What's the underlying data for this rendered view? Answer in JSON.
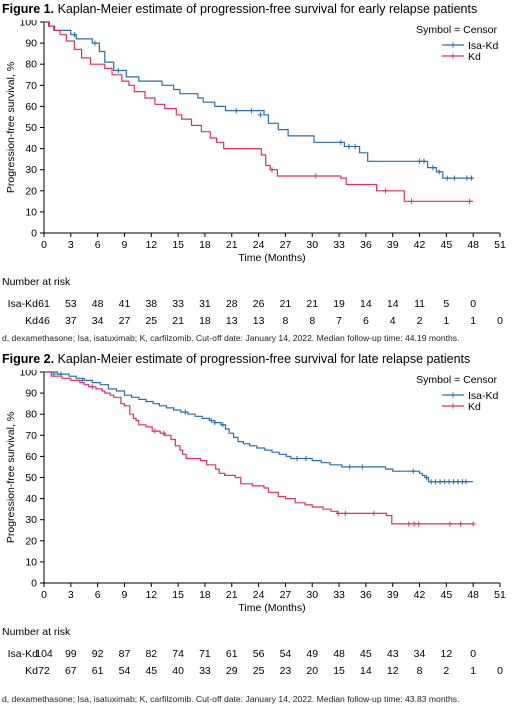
{
  "figures": [
    {
      "label": "Figure 1.",
      "title": "Kaplan-Meier estimate of progression-free survival for early relapse patients",
      "footnote": "d, dexamethasone; Isa, isatuximab; K, carfilzomib. Cut-off date: January 14, 2022. Median follow-up time: 44.19 months."
    },
    {
      "label": "Figure 2.",
      "title": "Kaplan-Meier estimate of progression-free survival for late relapse patients",
      "footnote": "d, dexamethasone; Isa, isatuximab; K, carfilzomib. Cut-off date: January 14, 2022. Median follow-up time: 43.83 months."
    }
  ],
  "chart_data": [
    {
      "type": "line",
      "step": true,
      "xlabel": "Time (Months)",
      "ylabel": "Progression-free survival, %",
      "xlim": [
        0,
        51
      ],
      "ylim": [
        0,
        100
      ],
      "xticks": [
        0,
        3,
        6,
        9,
        12,
        15,
        18,
        21,
        24,
        27,
        30,
        33,
        36,
        39,
        42,
        45,
        48,
        51
      ],
      "yticks": [
        0,
        10,
        20,
        30,
        40,
        50,
        60,
        70,
        80,
        90,
        100
      ],
      "grid": false,
      "legend": {
        "placement": "top-right",
        "title": "Symbol = Censor"
      },
      "series": [
        {
          "name": "Isa-Kd",
          "color": "#2e6da8",
          "points": [
            [
              0,
              100
            ],
            [
              0.6,
              98
            ],
            [
              1.2,
              96
            ],
            [
              3,
              94
            ],
            [
              3.6,
              92
            ],
            [
              5.4,
              90
            ],
            [
              6.2,
              86
            ],
            [
              6.8,
              81
            ],
            [
              7.8,
              77
            ],
            [
              9.2,
              74
            ],
            [
              10.6,
              72
            ],
            [
              13.2,
              70
            ],
            [
              14.5,
              68
            ],
            [
              15.2,
              66
            ],
            [
              17.2,
              64
            ],
            [
              17.8,
              62
            ],
            [
              19.1,
              60
            ],
            [
              20.3,
              58
            ],
            [
              24.6,
              56
            ],
            [
              25.1,
              52
            ],
            [
              26.2,
              49
            ],
            [
              27.3,
              46
            ],
            [
              30.2,
              43
            ],
            [
              33.6,
              41
            ],
            [
              35.3,
              38
            ],
            [
              36.2,
              34
            ],
            [
              42.9,
              31
            ],
            [
              43.9,
              29
            ],
            [
              44.6,
              26
            ],
            [
              48,
              26
            ]
          ],
          "censors": [
            [
              3.4,
              94
            ],
            [
              5.7,
              90
            ],
            [
              8.3,
              77
            ],
            [
              21.5,
              58
            ],
            [
              23.2,
              58
            ],
            [
              24.2,
              56
            ],
            [
              33.2,
              43
            ],
            [
              34.1,
              41
            ],
            [
              34.8,
              41
            ],
            [
              42.0,
              34
            ],
            [
              42.5,
              34
            ],
            [
              43.5,
              31
            ],
            [
              44.2,
              29
            ],
            [
              45.1,
              26
            ],
            [
              45.9,
              26
            ],
            [
              47.3,
              26
            ],
            [
              47.8,
              26
            ]
          ]
        },
        {
          "name": "Kd",
          "color": "#d6336c",
          "points": [
            [
              0,
              100
            ],
            [
              0.5,
              98
            ],
            [
              1.1,
              96
            ],
            [
              1.8,
              94
            ],
            [
              2.5,
              91
            ],
            [
              3.4,
              87
            ],
            [
              4.2,
              83
            ],
            [
              5.2,
              80
            ],
            [
              6.8,
              78
            ],
            [
              7.6,
              75
            ],
            [
              8.7,
              72
            ],
            [
              9.5,
              70
            ],
            [
              10.1,
              67
            ],
            [
              11.3,
              64
            ],
            [
              12.4,
              61
            ],
            [
              13.5,
              59
            ],
            [
              14.8,
              56
            ],
            [
              15.4,
              54
            ],
            [
              16.5,
              51
            ],
            [
              17.6,
              48
            ],
            [
              18.6,
              45
            ],
            [
              19.3,
              43
            ],
            [
              20.1,
              40
            ],
            [
              24.3,
              37
            ],
            [
              24.8,
              32
            ],
            [
              25.3,
              30
            ],
            [
              26.1,
              27
            ],
            [
              33.2,
              26
            ],
            [
              33.8,
              23
            ],
            [
              37.2,
              20
            ],
            [
              40.3,
              15
            ],
            [
              48,
              15
            ]
          ],
          "censors": [
            [
              25.5,
              30
            ],
            [
              30.4,
              27
            ],
            [
              38.2,
              20
            ],
            [
              41.1,
              15
            ],
            [
              47.6,
              15
            ]
          ]
        }
      ],
      "risk_table": {
        "title": "Number at risk",
        "rows": [
          {
            "label": "Isa-Kd",
            "values": [
              "61",
              "53",
              "48",
              "41",
              "38",
              "33",
              "31",
              "28",
              "26",
              "21",
              "21",
              "19",
              "14",
              "14",
              "11",
              "5",
              "0"
            ]
          },
          {
            "label": "Kd",
            "values": [
              "46",
              "37",
              "34",
              "27",
              "25",
              "21",
              "18",
              "13",
              "13",
              "8",
              "8",
              "7",
              "6",
              "4",
              "2",
              "1",
              "1",
              "0"
            ]
          }
        ]
      }
    },
    {
      "type": "line",
      "step": true,
      "xlabel": "Time (Months)",
      "ylabel": "Progression-free survival, %",
      "xlim": [
        0,
        51
      ],
      "ylim": [
        0,
        100
      ],
      "xticks": [
        0,
        3,
        6,
        9,
        12,
        15,
        18,
        21,
        24,
        27,
        30,
        33,
        36,
        39,
        42,
        45,
        48,
        51
      ],
      "yticks": [
        0,
        10,
        20,
        30,
        40,
        50,
        60,
        70,
        80,
        90,
        100
      ],
      "grid": false,
      "legend": {
        "placement": "top-right",
        "title": "Symbol = Censor"
      },
      "series": [
        {
          "name": "Isa-Kd",
          "color": "#2e6da8",
          "points": [
            [
              0,
              100
            ],
            [
              1.5,
              99
            ],
            [
              2.8,
              98
            ],
            [
              3.6,
              97
            ],
            [
              4.5,
              96
            ],
            [
              5.4,
              95
            ],
            [
              6.3,
              94
            ],
            [
              7.2,
              92
            ],
            [
              8.1,
              91
            ],
            [
              9.0,
              89
            ],
            [
              9.8,
              88
            ],
            [
              10.6,
              87
            ],
            [
              11.4,
              86
            ],
            [
              12.2,
              85
            ],
            [
              12.9,
              84
            ],
            [
              13.7,
              83
            ],
            [
              14.5,
              82
            ],
            [
              15.3,
              81
            ],
            [
              16.1,
              80
            ],
            [
              16.9,
              79
            ],
            [
              17.7,
              78
            ],
            [
              18.5,
              77
            ],
            [
              19.1,
              76
            ],
            [
              19.8,
              75
            ],
            [
              20.3,
              73
            ],
            [
              20.7,
              71
            ],
            [
              21.2,
              69
            ],
            [
              21.7,
              67
            ],
            [
              22.3,
              66
            ],
            [
              23.0,
              65
            ],
            [
              23.8,
              64
            ],
            [
              24.7,
              63
            ],
            [
              25.5,
              62
            ],
            [
              26.3,
              61
            ],
            [
              27.1,
              60
            ],
            [
              27.6,
              59
            ],
            [
              30.0,
              58
            ],
            [
              31.0,
              57
            ],
            [
              32.0,
              56
            ],
            [
              33.3,
              55
            ],
            [
              35.2,
              55
            ],
            [
              38.2,
              54
            ],
            [
              39.0,
              53
            ],
            [
              40.3,
              53
            ],
            [
              42.0,
              52
            ],
            [
              42.3,
              51
            ],
            [
              42.6,
              50
            ],
            [
              43.0,
              48
            ],
            [
              48,
              48
            ]
          ],
          "censors": [
            [
              1.1,
              99
            ],
            [
              1.9,
              99
            ],
            [
              4.3,
              96
            ],
            [
              15.8,
              81
            ],
            [
              18.7,
              77
            ],
            [
              19.1,
              76
            ],
            [
              20.0,
              75
            ],
            [
              28.3,
              59
            ],
            [
              29.3,
              59
            ],
            [
              34.2,
              55
            ],
            [
              35.6,
              55
            ],
            [
              41.3,
              53
            ],
            [
              42.8,
              50
            ],
            [
              43.3,
              48
            ],
            [
              43.8,
              48
            ],
            [
              44.3,
              48
            ],
            [
              44.8,
              48
            ],
            [
              45.3,
              48
            ],
            [
              45.8,
              48
            ],
            [
              46.3,
              48
            ],
            [
              46.8,
              48
            ],
            [
              47.2,
              48
            ]
          ]
        },
        {
          "name": "Kd",
          "color": "#d6336c",
          "points": [
            [
              0,
              100
            ],
            [
              0.8,
              98
            ],
            [
              2.0,
              97
            ],
            [
              3.0,
              96
            ],
            [
              4.0,
              95
            ],
            [
              4.5,
              94
            ],
            [
              5.0,
              93
            ],
            [
              5.8,
              92
            ],
            [
              6.5,
              91
            ],
            [
              6.8,
              90
            ],
            [
              7.4,
              89
            ],
            [
              7.8,
              88
            ],
            [
              8.6,
              85
            ],
            [
              9.0,
              84
            ],
            [
              9.6,
              80
            ],
            [
              10.0,
              78
            ],
            [
              10.3,
              77
            ],
            [
              10.6,
              75
            ],
            [
              11.4,
              74
            ],
            [
              12.1,
              72
            ],
            [
              13.0,
              71
            ],
            [
              13.5,
              70
            ],
            [
              14.2,
              68
            ],
            [
              14.7,
              65
            ],
            [
              15.2,
              63
            ],
            [
              15.5,
              61
            ],
            [
              15.9,
              59
            ],
            [
              17.5,
              58
            ],
            [
              18.2,
              56
            ],
            [
              19.2,
              54
            ],
            [
              19.6,
              52
            ],
            [
              20.2,
              51
            ],
            [
              21.4,
              50
            ],
            [
              22.0,
              47
            ],
            [
              23.3,
              46
            ],
            [
              24.6,
              45
            ],
            [
              25.1,
              43
            ],
            [
              26.2,
              41
            ],
            [
              27.0,
              40
            ],
            [
              28.1,
              38
            ],
            [
              29.2,
              37
            ],
            [
              30.0,
              36
            ],
            [
              31.2,
              35
            ],
            [
              32.1,
              34
            ],
            [
              32.8,
              33
            ],
            [
              35.1,
              33
            ],
            [
              38.3,
              32
            ],
            [
              38.9,
              28
            ],
            [
              48,
              28
            ]
          ],
          "censors": [
            [
              5.4,
              93
            ],
            [
              12.4,
              72
            ],
            [
              13.4,
              71
            ],
            [
              32.9,
              33
            ],
            [
              33.7,
              33
            ],
            [
              36.9,
              33
            ],
            [
              40.8,
              28
            ],
            [
              41.4,
              28
            ],
            [
              41.9,
              28
            ],
            [
              45.4,
              28
            ],
            [
              46.6,
              28
            ],
            [
              48.0,
              28
            ]
          ]
        }
      ],
      "risk_table": {
        "title": "Number at risk",
        "rows": [
          {
            "label": "Isa-Kd",
            "values": [
              "104",
              "99",
              "92",
              "87",
              "82",
              "74",
              "71",
              "61",
              "56",
              "54",
              "49",
              "48",
              "45",
              "43",
              "34",
              "12",
              "0"
            ]
          },
          {
            "label": "Kd",
            "values": [
              "72",
              "67",
              "61",
              "54",
              "45",
              "40",
              "33",
              "29",
              "25",
              "23",
              "20",
              "15",
              "14",
              "12",
              "8",
              "2",
              "1",
              "0"
            ]
          }
        ]
      }
    }
  ]
}
